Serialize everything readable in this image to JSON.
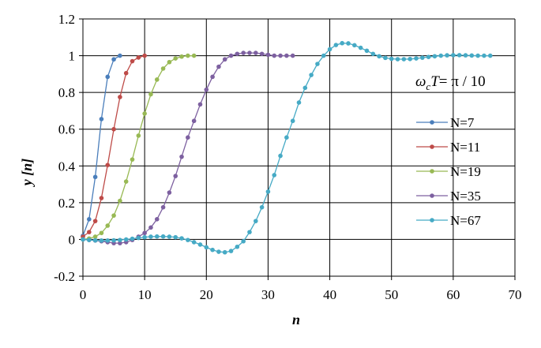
{
  "chart_data": {
    "type": "line",
    "title": "",
    "xlabel": "n",
    "ylabel_parts": [
      "y [",
      "n",
      "]"
    ],
    "annotation_parts": [
      "ω",
      "c",
      "T",
      "= π / 10"
    ],
    "xlim": [
      0,
      70
    ],
    "ylim": [
      -0.2,
      1.2
    ],
    "x_ticks": [
      0,
      10,
      20,
      30,
      40,
      50,
      60,
      70
    ],
    "y_ticks": [
      -0.2,
      0,
      0.2,
      0.4,
      0.6,
      0.8,
      1,
      1.2
    ],
    "x_tick_labels": [
      "0",
      "10",
      "20",
      "30",
      "40",
      "50",
      "60",
      "70"
    ],
    "y_tick_labels": [
      "-0.2",
      "0",
      "0.2",
      "0.4",
      "0.6",
      "0.8",
      "1",
      "1.2"
    ],
    "grid": true,
    "legend_position": "right",
    "series": [
      {
        "name": "N=7",
        "color": "#4a7ebb",
        "x": [
          0,
          1,
          2,
          3,
          4,
          5,
          6
        ],
        "y": [
          0.02,
          0.11,
          0.34,
          0.655,
          0.885,
          0.98,
          1.0
        ]
      },
      {
        "name": "N=11",
        "color": "#be4b48",
        "x": [
          0,
          1,
          2,
          3,
          4,
          5,
          6,
          7,
          8,
          9,
          10
        ],
        "y": [
          0.015,
          0.04,
          0.1,
          0.225,
          0.405,
          0.6,
          0.775,
          0.905,
          0.97,
          0.99,
          1.0
        ]
      },
      {
        "name": "N=19",
        "color": "#98b954",
        "x": [
          0,
          1,
          2,
          3,
          4,
          5,
          6,
          7,
          8,
          9,
          10,
          11,
          12,
          13,
          14,
          15,
          16,
          17,
          18
        ],
        "y": [
          0.0,
          0.005,
          0.015,
          0.035,
          0.075,
          0.13,
          0.21,
          0.315,
          0.435,
          0.565,
          0.685,
          0.79,
          0.87,
          0.93,
          0.965,
          0.985,
          0.995,
          1.0,
          1.0
        ]
      },
      {
        "name": "N=35",
        "color": "#7d60a0",
        "x": [
          0,
          1,
          2,
          3,
          4,
          5,
          6,
          7,
          8,
          9,
          10,
          11,
          12,
          13,
          14,
          15,
          16,
          17,
          18,
          19,
          20,
          21,
          22,
          23,
          24,
          25,
          26,
          27,
          28,
          29,
          30,
          31,
          32,
          33,
          34
        ],
        "y": [
          0.0,
          -0.003,
          -0.006,
          -0.01,
          -0.015,
          -0.02,
          -0.02,
          -0.015,
          -0.003,
          0.015,
          0.035,
          0.065,
          0.11,
          0.175,
          0.255,
          0.345,
          0.45,
          0.555,
          0.645,
          0.735,
          0.815,
          0.885,
          0.94,
          0.98,
          1.0,
          1.01,
          1.015,
          1.015,
          1.015,
          1.01,
          1.005,
          1.0,
          1.0,
          1.0,
          1.0
        ]
      },
      {
        "name": "N=67",
        "color": "#46aac5",
        "x": [
          0,
          1,
          2,
          3,
          4,
          5,
          6,
          7,
          8,
          9,
          10,
          11,
          12,
          13,
          14,
          15,
          16,
          17,
          18,
          19,
          20,
          21,
          22,
          23,
          24,
          25,
          26,
          27,
          28,
          29,
          30,
          31,
          32,
          33,
          34,
          35,
          36,
          37,
          38,
          39,
          40,
          41,
          42,
          43,
          44,
          45,
          46,
          47,
          48,
          49,
          50,
          51,
          52,
          53,
          54,
          55,
          56,
          57,
          58,
          59,
          60,
          61,
          62,
          63,
          64,
          65,
          66
        ],
        "y": [
          0.0,
          -0.003,
          -0.005,
          -0.006,
          -0.006,
          -0.005,
          -0.003,
          0.0,
          0.004,
          0.008,
          0.012,
          0.015,
          0.016,
          0.016,
          0.015,
          0.012,
          0.006,
          -0.003,
          -0.015,
          -0.028,
          -0.043,
          -0.057,
          -0.067,
          -0.07,
          -0.063,
          -0.04,
          -0.01,
          0.04,
          0.1,
          0.175,
          0.26,
          0.35,
          0.455,
          0.555,
          0.645,
          0.745,
          0.825,
          0.895,
          0.955,
          1.0,
          1.035,
          1.058,
          1.068,
          1.067,
          1.057,
          1.043,
          1.027,
          1.01,
          0.997,
          0.988,
          0.983,
          0.981,
          0.981,
          0.982,
          0.985,
          0.989,
          0.993,
          0.997,
          1.0,
          1.002,
          1.003,
          1.003,
          1.002,
          1.001,
          1.0,
          1.0,
          1.0
        ]
      }
    ]
  }
}
